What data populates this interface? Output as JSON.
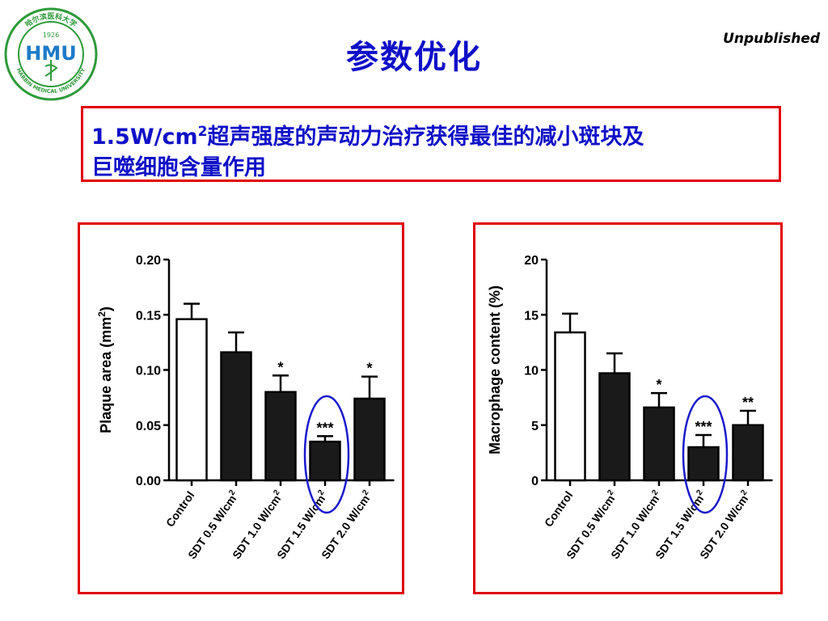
{
  "logo": {
    "year": "1926",
    "letters": "HMU",
    "ring_top": "哈尔滨医科大学",
    "ring_bottom": "HARBIN MEDICAL UNIVERSITY",
    "ring_color": "#2e9b3a",
    "letter_color": "#1e7bc8"
  },
  "slide": {
    "title": "参数优化",
    "badge": "Unpublished",
    "highlight_prefix": "1.5W/cm",
    "highlight_sup": "2",
    "highlight_line1": "超声强度的声动力治疗获得最佳的减小斑块及",
    "highlight_line2": "巨噬细胞含量作用"
  },
  "colors": {
    "title": "#1010c8",
    "frame": "#e00000",
    "circle": "#1a1acc",
    "bar": "#1a1a1a"
  },
  "chart_data": [
    {
      "type": "bar",
      "ylabel": "Plaque area (mm",
      "ylabel_sup": "2",
      "ylabel_suffix": ")",
      "ylim": [
        0,
        0.2
      ],
      "yticks": [
        "0.00",
        "0.05",
        "0.10",
        "0.15",
        "0.20"
      ],
      "ytick_values": [
        0,
        0.05,
        0.1,
        0.15,
        0.2
      ],
      "category_suffix_sup": "2",
      "categories": [
        "Control",
        "SDT 0.5 W/cm",
        "SDT 1.0 W/cm",
        "SDT 1.5 W/cm",
        "SDT 2.0 W/cm"
      ],
      "values": [
        0.146,
        0.116,
        0.08,
        0.035,
        0.074
      ],
      "errors": [
        0.014,
        0.018,
        0.015,
        0.005,
        0.02
      ],
      "significance": [
        "",
        "",
        "*",
        "***",
        "*"
      ],
      "fills": [
        "white",
        "black",
        "black",
        "black",
        "black"
      ],
      "highlight_index": 3
    },
    {
      "type": "bar",
      "ylabel": "Macrophage content (%)",
      "ylabel_sup": "",
      "ylabel_suffix": "",
      "ylim": [
        0,
        20
      ],
      "yticks": [
        "0",
        "5",
        "10",
        "15",
        "20"
      ],
      "ytick_values": [
        0,
        5,
        10,
        15,
        20
      ],
      "category_suffix_sup": "2",
      "categories": [
        "Control",
        "SDT 0.5 W/cm",
        "SDT 1.0 W/cm",
        "SDT 1.5 W/cm",
        "SDT 2.0 W/cm"
      ],
      "values": [
        13.4,
        9.7,
        6.6,
        3.0,
        5.0
      ],
      "errors": [
        1.7,
        1.8,
        1.3,
        1.1,
        1.3
      ],
      "significance": [
        "",
        "",
        "*",
        "***",
        "**"
      ],
      "fills": [
        "white",
        "black",
        "black",
        "black",
        "black"
      ],
      "highlight_index": 3
    }
  ]
}
